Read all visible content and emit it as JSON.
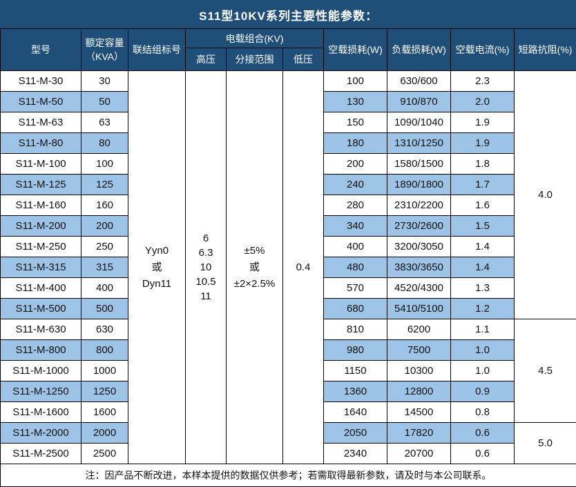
{
  "title": "S11型10KV系列主要性能参数：",
  "header": {
    "model": "型号",
    "capacity": "额定容量\n（KVA）",
    "vector_group": "联结组标号",
    "voltage_group": "电载组合(KV)",
    "hv": "高压",
    "tap_range": "分接范围",
    "lv": "低压",
    "no_load_loss": "空载损耗(W)",
    "load_loss": "负载损耗(W)",
    "no_load_current": "空载电流(%)",
    "impedance": "短路抗阻(%)"
  },
  "shared": {
    "vector_group": "Yyn0\n或\nDyn11",
    "hv": "6\n6.3\n10\n10.5\n11",
    "tap_range": "±5%\n或\n±2×2.5%",
    "lv": "0.4"
  },
  "impedance_groups": [
    {
      "value": "4.0",
      "row_span": 12
    },
    {
      "value": "4.5",
      "row_span": 5
    },
    {
      "value": "5.0",
      "row_span": 2
    }
  ],
  "rows": [
    {
      "model": "S11-M-30",
      "capacity": "30",
      "no_load_loss": "100",
      "load_loss": "630/600",
      "no_load_current": "2.3"
    },
    {
      "model": "S11-M-50",
      "capacity": "50",
      "no_load_loss": "130",
      "load_loss": "910/870",
      "no_load_current": "2.0"
    },
    {
      "model": "S11-M-63",
      "capacity": "63",
      "no_load_loss": "150",
      "load_loss": "1090/1040",
      "no_load_current": "1.9"
    },
    {
      "model": "S11-M-80",
      "capacity": "80",
      "no_load_loss": "180",
      "load_loss": "1310/1250",
      "no_load_current": "1.9"
    },
    {
      "model": "S11-M-100",
      "capacity": "100",
      "no_load_loss": "200",
      "load_loss": "1580/1500",
      "no_load_current": "1.8"
    },
    {
      "model": "S11-M-125",
      "capacity": "125",
      "no_load_loss": "240",
      "load_loss": "1890/1800",
      "no_load_current": "1.7"
    },
    {
      "model": "S11-M-160",
      "capacity": "160",
      "no_load_loss": "280",
      "load_loss": "2310/2200",
      "no_load_current": "1.6"
    },
    {
      "model": "S11-M-200",
      "capacity": "200",
      "no_load_loss": "340",
      "load_loss": "2730/2600",
      "no_load_current": "1.5"
    },
    {
      "model": "S11-M-250",
      "capacity": "250",
      "no_load_loss": "400",
      "load_loss": "3200/3050",
      "no_load_current": "1.4"
    },
    {
      "model": "S11-M-315",
      "capacity": "315",
      "no_load_loss": "480",
      "load_loss": "3830/3650",
      "no_load_current": "1.4"
    },
    {
      "model": "S11-M-400",
      "capacity": "400",
      "no_load_loss": "570",
      "load_loss": "4520/4300",
      "no_load_current": "1.3"
    },
    {
      "model": "S11-M-500",
      "capacity": "500",
      "no_load_loss": "680",
      "load_loss": "5410/5100",
      "no_load_current": "1.2"
    },
    {
      "model": "S11-M-630",
      "capacity": "630",
      "no_load_loss": "810",
      "load_loss": "6200",
      "no_load_current": "1.1"
    },
    {
      "model": "S11-M-800",
      "capacity": "800",
      "no_load_loss": "980",
      "load_loss": "7500",
      "no_load_current": "1.0"
    },
    {
      "model": "S11-M-1000",
      "capacity": "1000",
      "no_load_loss": "1150",
      "load_loss": "10300",
      "no_load_current": "1.0"
    },
    {
      "model": "S11-M-1250",
      "capacity": "1250",
      "no_load_loss": "1360",
      "load_loss": "12800",
      "no_load_current": "0.9"
    },
    {
      "model": "S11-M-1600",
      "capacity": "1600",
      "no_load_loss": "1640",
      "load_loss": "14500",
      "no_load_current": "0.8"
    },
    {
      "model": "S11-M-2000",
      "capacity": "2000",
      "no_load_loss": "2050",
      "load_loss": "17820",
      "no_load_current": "0.6"
    },
    {
      "model": "S11-M-2500",
      "capacity": "2500",
      "no_load_loss": "2340",
      "load_loss": "20700",
      "no_load_current": "0.6"
    }
  ],
  "note": "注：因产品不断改进，本样本提供的数据仅供参考；若需取得最新参数，请及时与本公司联系。",
  "colors": {
    "header_bg": "#1F4E79",
    "header_text": "#FFFFFF",
    "stripe_bg": "#9DC3E6",
    "border": "#000000"
  }
}
